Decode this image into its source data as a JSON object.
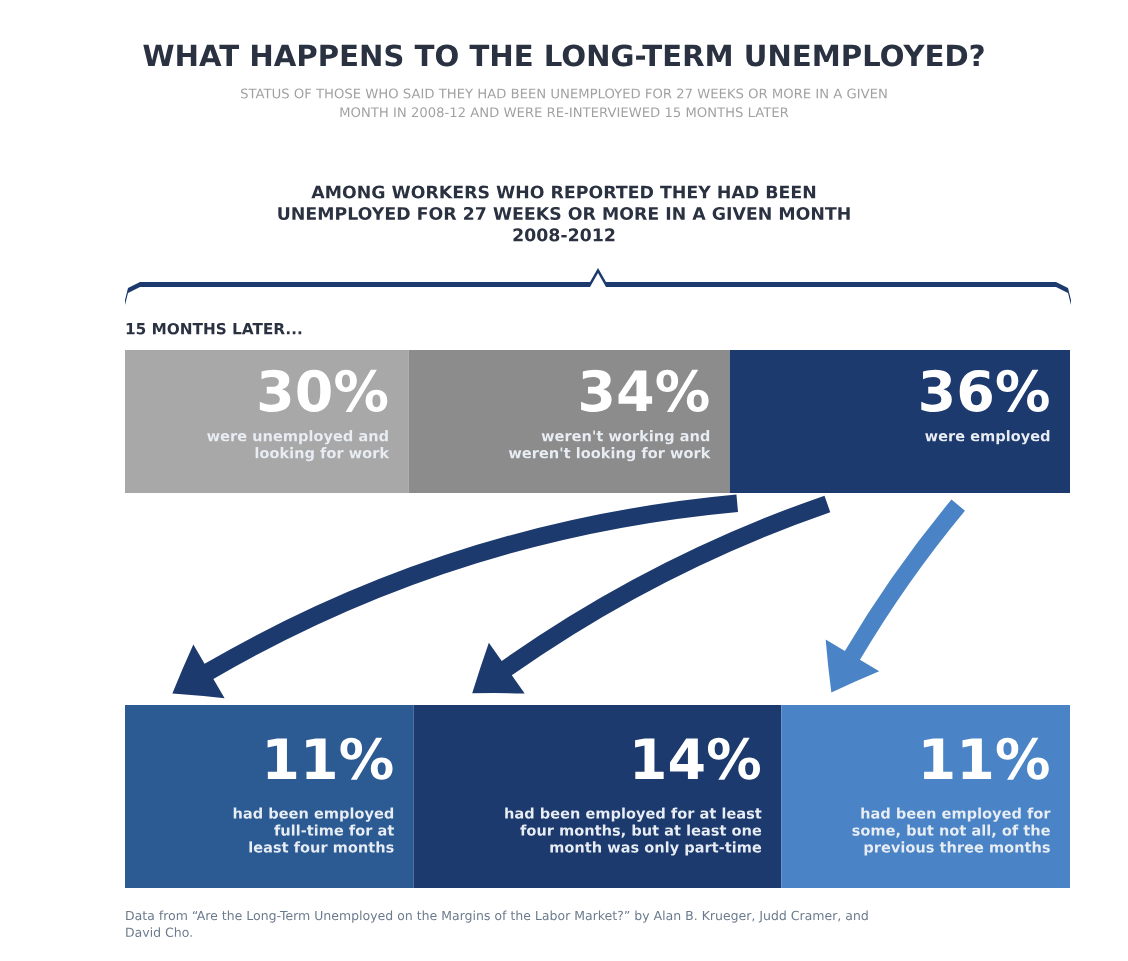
{
  "chart_data": [
    {
      "type": "bar",
      "orientation": "horizontal",
      "stacked": true,
      "title": "WHAT HAPPENS TO THE LONG-TERM UNEMPLOYED?",
      "subtitle": "STATUS OF THOSE WHO SAID THEY HAD BEEN UNEMPLOYED FOR 27 WEEKS OR MORE IN A GIVEN\nMONTH IN 2008-12 AND WERE RE-INTERVIEWED 15 MONTHS LATER",
      "annotations": [
        "AMONG WORKERS WHO REPORTED THEY HAD BEEN\nUNEMPLOYED FOR 27 WEEKS OR MORE IN A GIVEN MONTH\n2008-2012",
        "15 MONTHS LATER..."
      ],
      "categories": [
        null
      ],
      "series": [
        {
          "name": "were unemployed and\nlooking for work",
          "color": "#a8a8a8",
          "values": [
            30
          ],
          "value_labels": [
            "30%"
          ]
        },
        {
          "name": "weren't working and\nweren't looking for work",
          "color": "#8c8c8c",
          "values": [
            34
          ],
          "value_labels": [
            "34%"
          ]
        },
        {
          "name": "were employed",
          "color": "#1d3a6e",
          "values": [
            36
          ],
          "value_labels": [
            "36%"
          ]
        }
      ]
    },
    {
      "type": "bar",
      "orientation": "horizontal",
      "stacked": true,
      "annotations": [
        "Data from “Are the Long-Term Unemployed on the Margins of the Labor Market?” by Alan B. Krueger, Judd Cramer, and\nDavid Cho."
      ],
      "categories": [
        null
      ],
      "series": [
        {
          "name": "had been employed\nfull-time for at\nleast four months",
          "color": "#2c5b94",
          "values": [
            11
          ],
          "value_labels": [
            "11%"
          ]
        },
        {
          "name": "had been employed for at least\nfour months, but at least one\nmonth was only part-time",
          "color": "#1d3a6e",
          "values": [
            14
          ],
          "value_labels": [
            "14%"
          ]
        },
        {
          "name": "had been employed for\nsome, but not all, of the\nprevious three months",
          "color": "#4a84c6",
          "values": [
            11
          ],
          "value_labels": [
            "11%"
          ]
        }
      ]
    }
  ]
}
